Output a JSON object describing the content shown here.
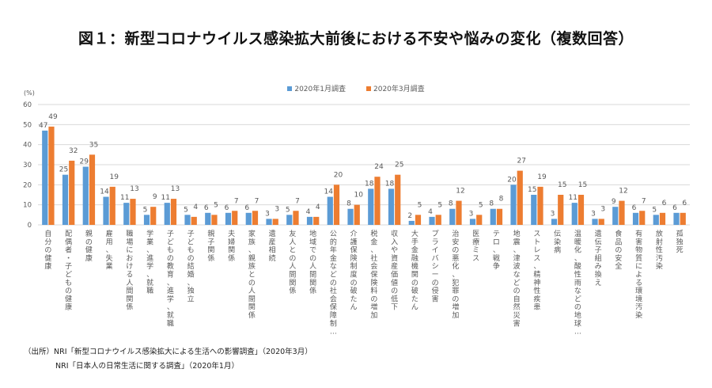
{
  "title": "図１：新型コロナウイルス感染拡大前後における不安や悩みの変化（複数回答）",
  "colors": {
    "jan": "#5B9BD5",
    "mar": "#ED7D31",
    "grid": "#D9D9D9",
    "text": "#595959"
  },
  "notes": {
    "line1": "（出所）NRI「新型コロナウイルス感染拡大による生活への影響調査」（2020年3月）",
    "line2": "NRI「日本人の日常生活に関する調査」（2020年1月）"
  },
  "chart_data": {
    "type": "bar",
    "title": "",
    "ylabel": "(%)",
    "xlabel": "",
    "ylim": [
      0,
      60
    ],
    "yticks": [
      0,
      10,
      20,
      30,
      40,
      50,
      60
    ],
    "grid": true,
    "legend_position": "top-center",
    "categories": [
      "自分の健康",
      "配偶者・子どもの健康",
      "親の健康",
      "雇用、失業",
      "職場における人間関係",
      "学業、進学、就職",
      "子どもの教育、進学、就職",
      "子どもの結婚、独立",
      "親子関係",
      "夫婦関係",
      "家族、親族との人間関係",
      "遺産相続",
      "友人との人間関係",
      "地域での人間関係",
      "公的年金などの社会保障制…",
      "介護保険制度の破たん",
      "税金、社会保険料の増加",
      "収入や資産価値の低下",
      "大手金融機関の破たん",
      "プライバシーの侵害",
      "治安の悪化、犯罪の増加",
      "医療ミス",
      "テロ、戦争",
      "地震、津波などの自然災害",
      "ストレス、精神性疾患",
      "伝染病",
      "温暖化、酸性雨などの地球…",
      "遺伝子組み換え",
      "食品の安全",
      "有害物質による環境汚染",
      "放射性汚染",
      "孤独死"
    ],
    "series": [
      {
        "name": "2020年1月調査",
        "values": [
          47,
          25,
          29,
          14,
          11,
          5,
          11,
          5,
          6,
          6,
          6,
          3,
          5,
          4,
          14,
          8,
          18,
          18,
          2,
          4,
          8,
          3,
          8,
          20,
          15,
          3,
          11,
          3,
          9,
          6,
          5,
          6
        ]
      },
      {
        "name": "2020年3月調査",
        "values": [
          49,
          32,
          35,
          19,
          13,
          9,
          13,
          4,
          5,
          7,
          7,
          3,
          7,
          4,
          20,
          10,
          24,
          25,
          5,
          5,
          12,
          5,
          8,
          27,
          19,
          15,
          15,
          3,
          12,
          7,
          6,
          6
        ]
      }
    ]
  }
}
